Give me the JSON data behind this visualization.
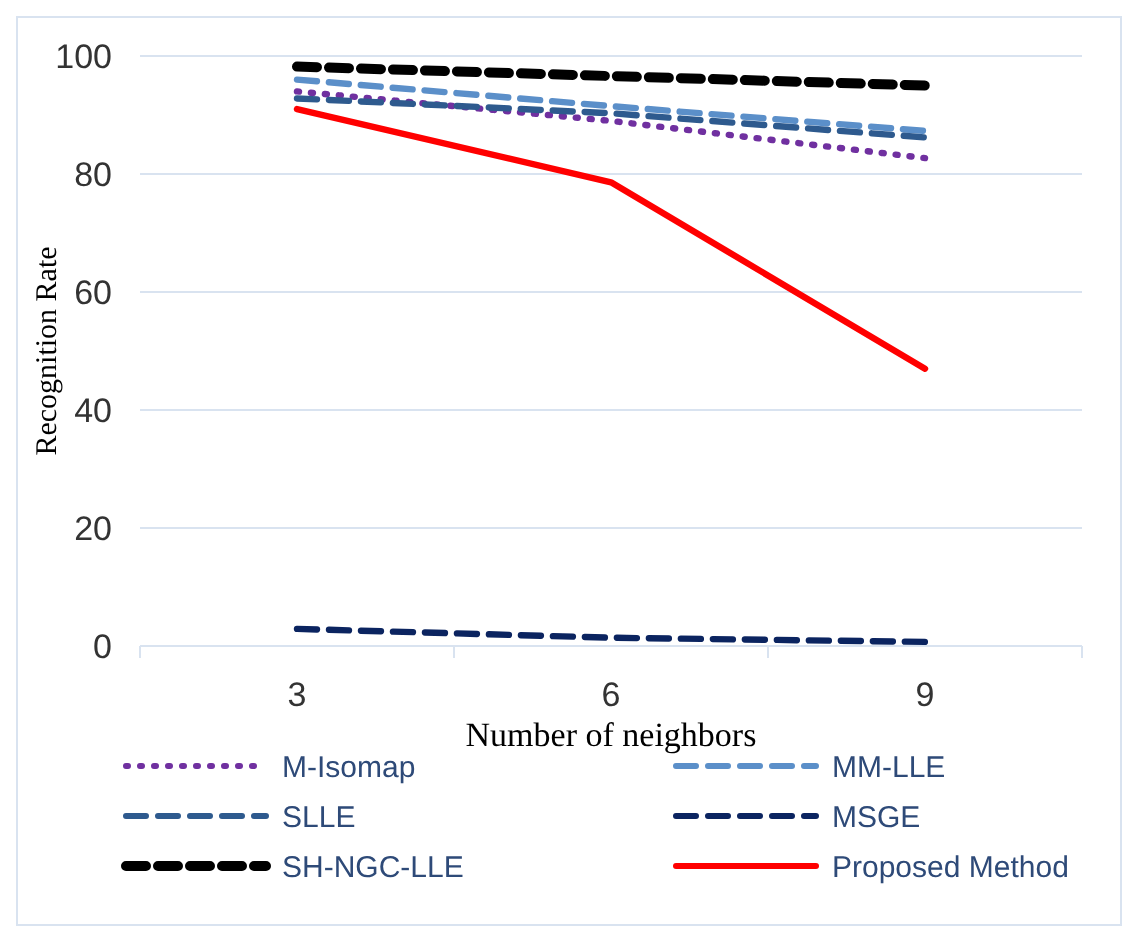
{
  "chart_data": {
    "type": "line",
    "xlabel": "Number of neighbors",
    "ylabel": "Recognition Rate",
    "categories": [
      "3",
      "6",
      "9"
    ],
    "ylim": [
      0,
      100
    ],
    "yticks": [
      0,
      20,
      40,
      60,
      80,
      100
    ],
    "grid": "y",
    "legend": "bottom",
    "marker": "none",
    "series": [
      {
        "name": "M-Isomap",
        "color": "#7030a0",
        "line_style": "dotted",
        "values": [
          94,
          89,
          82.7
        ]
      },
      {
        "name": "MM-LLE",
        "color": "#5b8fc9",
        "line_style": "dashed",
        "values": [
          96,
          91.5,
          87.3
        ]
      },
      {
        "name": "SLLE",
        "color": "#2e5a8e",
        "line_style": "dashed",
        "values": [
          92.8,
          90.3,
          86.2
        ]
      },
      {
        "name": "MSGE",
        "color": "#0b2460",
        "line_style": "dashed",
        "values": [
          2.9,
          1.4,
          0.7
        ]
      },
      {
        "name": "SH-NGC-LLE",
        "color": "#000000",
        "line_style": "dashed",
        "values": [
          98.2,
          96.6,
          95
        ]
      },
      {
        "name": "Proposed Method",
        "color": "#ff0000",
        "line_style": "solid",
        "values": [
          91,
          78.6,
          47
        ]
      }
    ]
  }
}
